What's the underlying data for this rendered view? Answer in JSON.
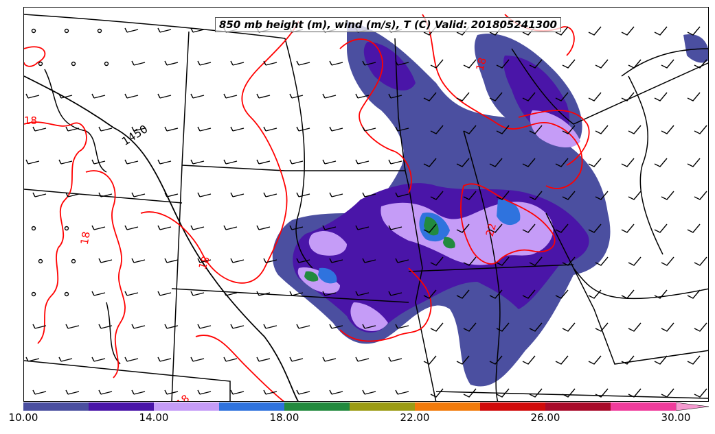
{
  "title": "850 mb height (m), wind (m/s), T (C) Valid: 201805241300",
  "contour_labels": {
    "height": [
      "1450"
    ],
    "temperature": [
      "18",
      "18",
      "18",
      "18",
      "22",
      "18"
    ]
  },
  "colorbar": {
    "colors": [
      "#4b4fa0",
      "#4a15a8",
      "#c59cf7",
      "#2f73de",
      "#228a3e",
      "#9c9c14",
      "#f27a0a",
      "#d10a0a",
      "#a80a2a",
      "#f03c9c",
      "#f59ad0"
    ],
    "tick_labels": [
      "10.00",
      "14.00",
      "18.00",
      "22.00",
      "26.00",
      "30.00"
    ],
    "ticks": [
      10,
      14,
      18,
      22,
      26,
      30
    ],
    "range": [
      10,
      32
    ],
    "step": 2
  },
  "style": {
    "temperature_contour_color": "#ff0000",
    "border_color": "#000000"
  }
}
